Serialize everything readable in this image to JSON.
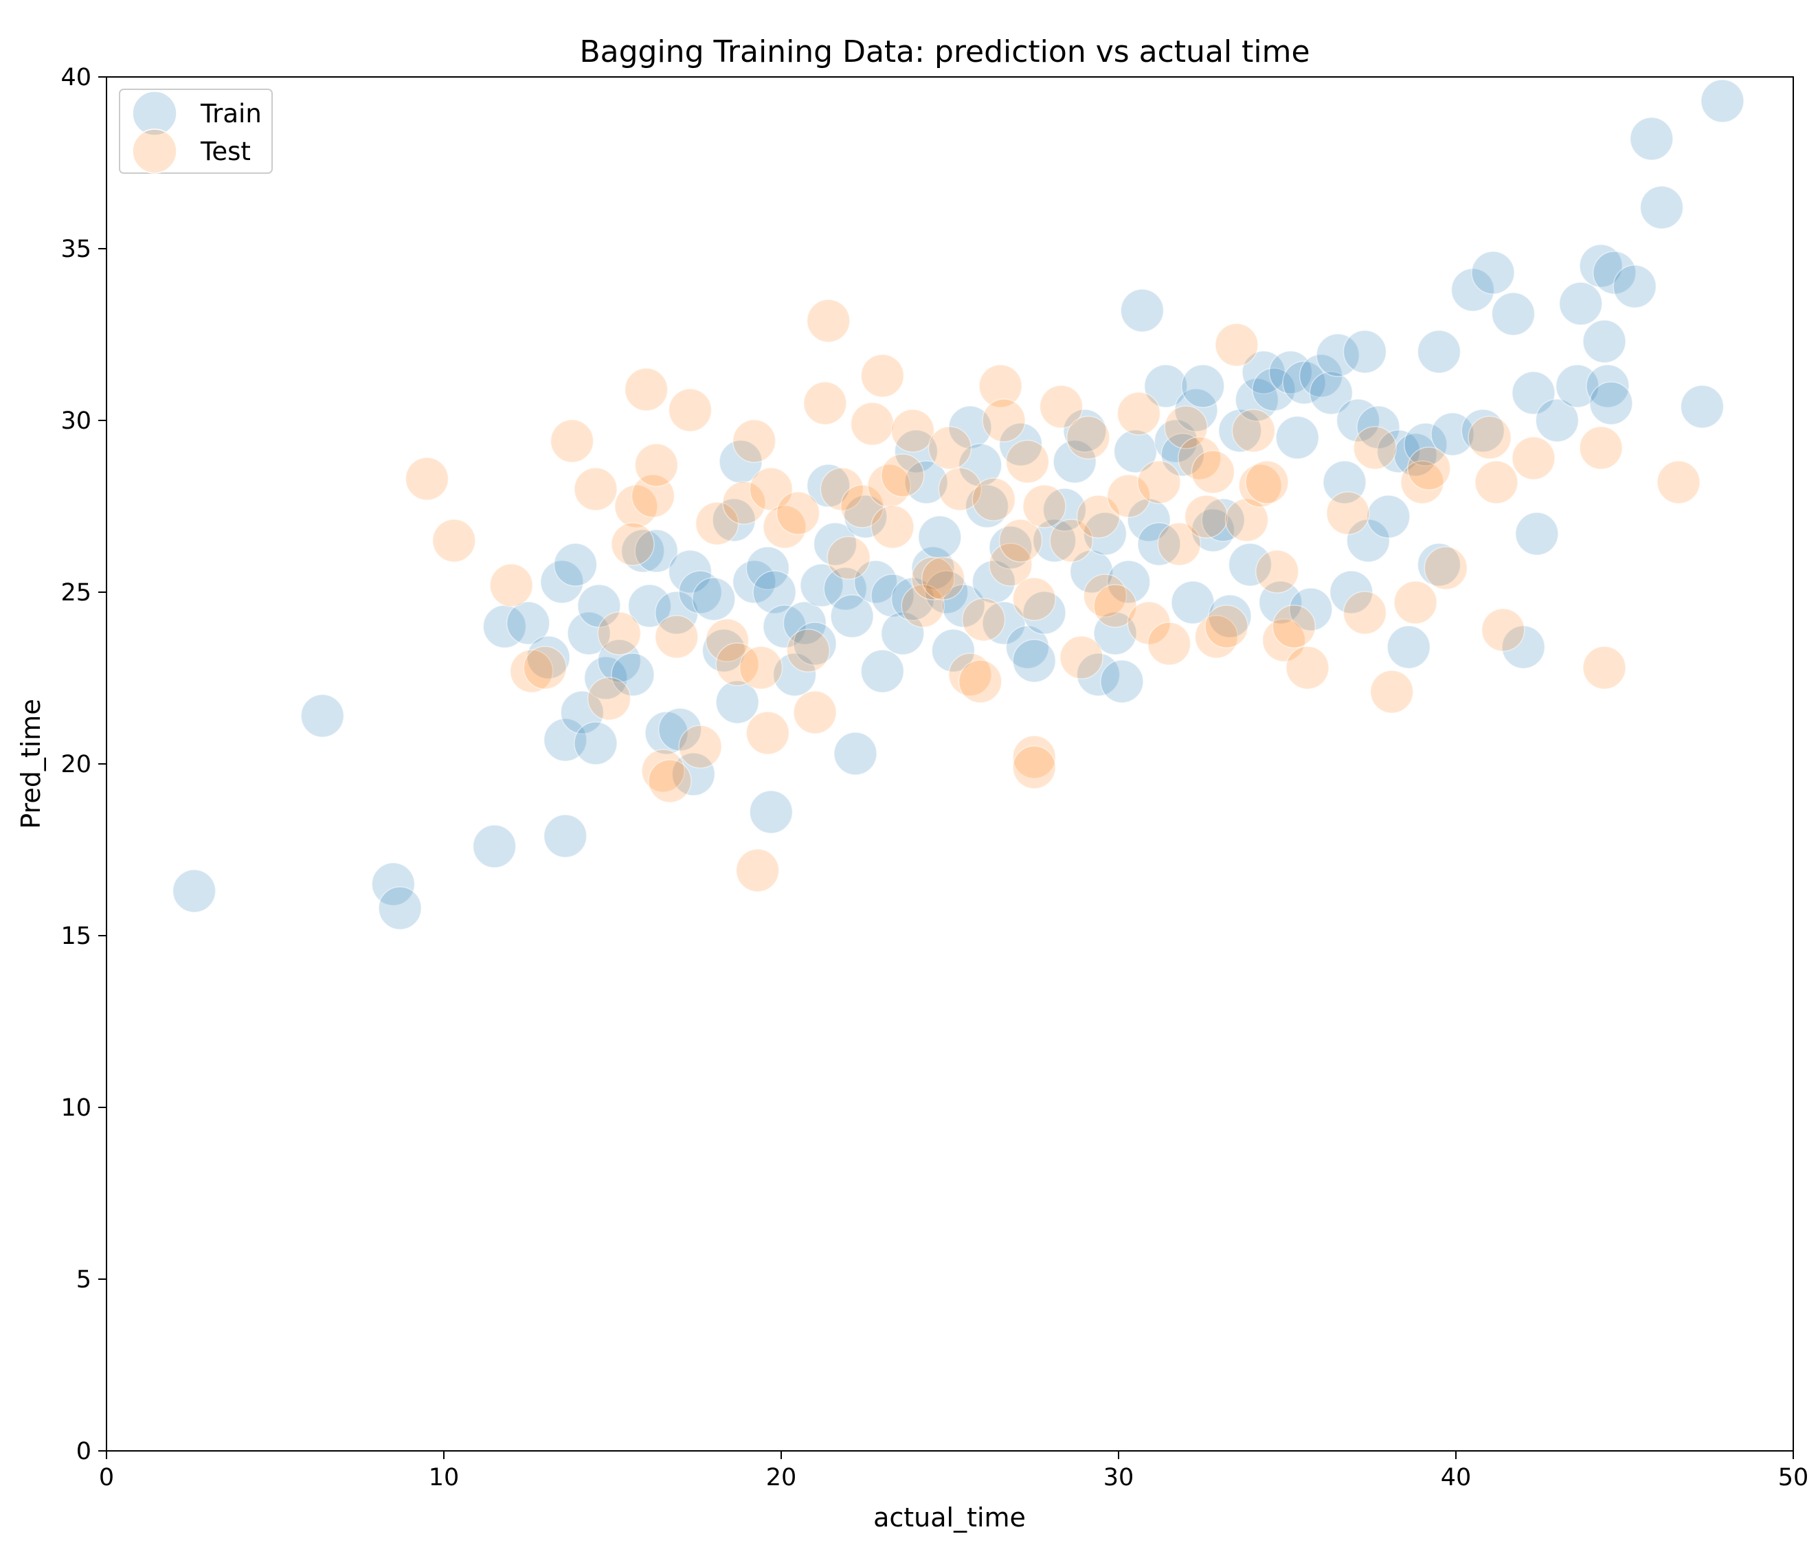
{
  "chart_data": {
    "type": "scatter",
    "title": "Bagging Training Data: prediction vs actual time",
    "xlabel": "actual_time",
    "ylabel": "Pred_time",
    "xlim": [
      0,
      50
    ],
    "ylim": [
      0,
      40
    ],
    "x_ticks": [
      0,
      10,
      20,
      30,
      40,
      50
    ],
    "y_ticks": [
      0,
      5,
      10,
      15,
      20,
      25,
      30,
      35,
      40
    ],
    "grid": false,
    "legend_position": "upper-left",
    "series": [
      {
        "name": "Train",
        "color": "#1f77b4",
        "alpha": 0.2,
        "points": [
          [
            2.6,
            16.3
          ],
          [
            6.4,
            21.4
          ],
          [
            8.5,
            16.5
          ],
          [
            8.7,
            15.8
          ],
          [
            11.5,
            17.6
          ],
          [
            13.6,
            17.9
          ],
          [
            11.8,
            24.0
          ],
          [
            12.5,
            24.1
          ],
          [
            13.5,
            25.3
          ],
          [
            13.9,
            25.8
          ],
          [
            13.1,
            23.1
          ],
          [
            13.6,
            20.7
          ],
          [
            14.1,
            21.5
          ],
          [
            14.5,
            20.6
          ],
          [
            14.3,
            23.8
          ],
          [
            14.6,
            24.6
          ],
          [
            14.8,
            22.5
          ],
          [
            15.2,
            23.0
          ],
          [
            15.6,
            22.6
          ],
          [
            15.9,
            26.2
          ],
          [
            16.3,
            26.2
          ],
          [
            16.1,
            24.6
          ],
          [
            16.6,
            20.9
          ],
          [
            17.0,
            21.0
          ],
          [
            17.4,
            19.7
          ],
          [
            16.9,
            24.4
          ],
          [
            17.3,
            25.6
          ],
          [
            17.6,
            25.0
          ],
          [
            18.0,
            24.8
          ],
          [
            18.3,
            23.3
          ],
          [
            18.7,
            21.8
          ],
          [
            18.6,
            27.1
          ],
          [
            18.8,
            28.8
          ],
          [
            19.2,
            25.3
          ],
          [
            19.6,
            25.7
          ],
          [
            19.8,
            25.0
          ],
          [
            20.1,
            24.0
          ],
          [
            19.7,
            18.6
          ],
          [
            20.4,
            22.6
          ],
          [
            20.7,
            24.1
          ],
          [
            21.0,
            23.5
          ],
          [
            21.2,
            25.2
          ],
          [
            21.4,
            28.1
          ],
          [
            21.6,
            26.4
          ],
          [
            21.9,
            25.1
          ],
          [
            22.1,
            24.3
          ],
          [
            22.2,
            20.3
          ],
          [
            22.5,
            27.2
          ],
          [
            22.8,
            25.3
          ],
          [
            23.0,
            22.7
          ],
          [
            23.3,
            24.9
          ],
          [
            23.6,
            23.8
          ],
          [
            23.9,
            24.8
          ],
          [
            24.0,
            29.1
          ],
          [
            24.3,
            28.2
          ],
          [
            24.5,
            25.7
          ],
          [
            24.7,
            26.6
          ],
          [
            24.9,
            25.0
          ],
          [
            25.1,
            23.3
          ],
          [
            25.4,
            24.6
          ],
          [
            25.6,
            29.8
          ],
          [
            25.9,
            28.7
          ],
          [
            26.1,
            27.5
          ],
          [
            26.3,
            25.3
          ],
          [
            26.6,
            24.1
          ],
          [
            26.8,
            26.3
          ],
          [
            27.1,
            29.3
          ],
          [
            27.3,
            23.4
          ],
          [
            27.5,
            23.0
          ],
          [
            27.8,
            24.4
          ],
          [
            28.1,
            26.5
          ],
          [
            28.4,
            27.4
          ],
          [
            28.7,
            28.8
          ],
          [
            29.0,
            29.7
          ],
          [
            29.2,
            25.6
          ],
          [
            29.4,
            22.6
          ],
          [
            29.6,
            26.7
          ],
          [
            29.9,
            23.8
          ],
          [
            30.1,
            22.4
          ],
          [
            30.3,
            25.3
          ],
          [
            30.5,
            29.1
          ],
          [
            30.7,
            33.2
          ],
          [
            30.9,
            27.1
          ],
          [
            31.2,
            26.4
          ],
          [
            31.4,
            31.0
          ],
          [
            31.7,
            29.4
          ],
          [
            31.9,
            29.0
          ],
          [
            32.2,
            24.7
          ],
          [
            32.3,
            30.3
          ],
          [
            32.5,
            31.0
          ],
          [
            32.8,
            26.8
          ],
          [
            33.1,
            27.1
          ],
          [
            33.3,
            24.3
          ],
          [
            33.6,
            29.7
          ],
          [
            33.9,
            25.8
          ],
          [
            34.1,
            30.6
          ],
          [
            34.3,
            31.4
          ],
          [
            34.6,
            30.9
          ],
          [
            34.8,
            24.7
          ],
          [
            35.1,
            31.4
          ],
          [
            35.3,
            29.5
          ],
          [
            35.5,
            31.1
          ],
          [
            35.7,
            24.5
          ],
          [
            36.0,
            31.3
          ],
          [
            36.3,
            30.8
          ],
          [
            36.5,
            31.9
          ],
          [
            36.7,
            28.2
          ],
          [
            36.9,
            25.0
          ],
          [
            37.1,
            30.0
          ],
          [
            37.3,
            32.0
          ],
          [
            37.4,
            26.5
          ],
          [
            37.7,
            29.8
          ],
          [
            38.0,
            27.2
          ],
          [
            38.3,
            29.1
          ],
          [
            38.6,
            23.4
          ],
          [
            38.8,
            29.0
          ],
          [
            39.1,
            29.3
          ],
          [
            39.5,
            32.0
          ],
          [
            39.5,
            25.8
          ],
          [
            39.9,
            29.6
          ],
          [
            40.5,
            33.8
          ],
          [
            40.8,
            29.7
          ],
          [
            41.1,
            34.3
          ],
          [
            41.7,
            33.1
          ],
          [
            42.0,
            23.4
          ],
          [
            42.3,
            30.8
          ],
          [
            42.4,
            26.7
          ],
          [
            43.0,
            30.0
          ],
          [
            43.6,
            31.0
          ],
          [
            43.7,
            33.4
          ],
          [
            44.3,
            34.5
          ],
          [
            44.4,
            32.3
          ],
          [
            44.5,
            31.0
          ],
          [
            44.6,
            30.5
          ],
          [
            44.7,
            34.3
          ],
          [
            45.3,
            33.9
          ],
          [
            45.8,
            38.2
          ],
          [
            46.1,
            36.2
          ],
          [
            47.3,
            30.4
          ],
          [
            47.9,
            39.3
          ]
        ]
      },
      {
        "name": "Test",
        "color": "#ff7f0e",
        "alpha": 0.2,
        "points": [
          [
            9.5,
            28.3
          ],
          [
            10.3,
            26.5
          ],
          [
            12.0,
            25.2
          ],
          [
            12.6,
            22.7
          ],
          [
            13.0,
            22.8
          ],
          [
            13.8,
            29.4
          ],
          [
            14.5,
            28.0
          ],
          [
            14.9,
            21.9
          ],
          [
            15.2,
            23.8
          ],
          [
            15.7,
            27.5
          ],
          [
            15.6,
            26.4
          ],
          [
            16.0,
            30.9
          ],
          [
            16.2,
            27.8
          ],
          [
            16.3,
            28.7
          ],
          [
            16.5,
            19.8
          ],
          [
            16.7,
            19.5
          ],
          [
            16.9,
            23.7
          ],
          [
            17.3,
            30.3
          ],
          [
            17.6,
            20.5
          ],
          [
            18.1,
            27.0
          ],
          [
            18.4,
            23.6
          ],
          [
            18.7,
            22.9
          ],
          [
            18.9,
            27.6
          ],
          [
            19.2,
            29.4
          ],
          [
            19.4,
            22.8
          ],
          [
            19.6,
            20.9
          ],
          [
            19.7,
            28.0
          ],
          [
            19.3,
            16.9
          ],
          [
            20.1,
            26.9
          ],
          [
            20.5,
            27.3
          ],
          [
            20.8,
            23.3
          ],
          [
            21.0,
            21.5
          ],
          [
            21.4,
            32.9
          ],
          [
            21.3,
            30.5
          ],
          [
            21.8,
            28.0
          ],
          [
            22.0,
            26.0
          ],
          [
            22.4,
            27.5
          ],
          [
            22.7,
            29.9
          ],
          [
            23.0,
            31.3
          ],
          [
            23.2,
            28.1
          ],
          [
            23.3,
            26.9
          ],
          [
            23.6,
            28.4
          ],
          [
            23.9,
            29.7
          ],
          [
            24.2,
            24.6
          ],
          [
            24.5,
            25.4
          ],
          [
            24.8,
            25.4
          ],
          [
            25.0,
            29.2
          ],
          [
            25.3,
            28.0
          ],
          [
            25.6,
            22.6
          ],
          [
            25.9,
            22.4
          ],
          [
            26.0,
            24.2
          ],
          [
            26.3,
            27.7
          ],
          [
            26.5,
            31.0
          ],
          [
            26.6,
            30.0
          ],
          [
            26.8,
            25.8
          ],
          [
            27.1,
            26.5
          ],
          [
            27.3,
            28.8
          ],
          [
            27.5,
            24.8
          ],
          [
            27.5,
            20.2
          ],
          [
            27.5,
            19.9
          ],
          [
            27.8,
            27.5
          ],
          [
            28.3,
            30.4
          ],
          [
            28.6,
            26.5
          ],
          [
            28.9,
            23.1
          ],
          [
            29.1,
            29.5
          ],
          [
            29.4,
            27.2
          ],
          [
            29.6,
            24.9
          ],
          [
            29.9,
            24.6
          ],
          [
            30.3,
            27.8
          ],
          [
            30.6,
            30.2
          ],
          [
            30.9,
            24.1
          ],
          [
            31.2,
            28.2
          ],
          [
            31.5,
            23.5
          ],
          [
            31.8,
            26.4
          ],
          [
            32.0,
            29.8
          ],
          [
            32.4,
            28.9
          ],
          [
            32.6,
            27.2
          ],
          [
            32.8,
            28.5
          ],
          [
            32.9,
            23.7
          ],
          [
            33.2,
            24.0
          ],
          [
            33.5,
            32.2
          ],
          [
            33.8,
            27.1
          ],
          [
            34.0,
            29.7
          ],
          [
            34.2,
            28.1
          ],
          [
            34.4,
            28.2
          ],
          [
            34.7,
            25.6
          ],
          [
            34.9,
            23.6
          ],
          [
            35.2,
            24.0
          ],
          [
            35.6,
            22.8
          ],
          [
            36.8,
            27.3
          ],
          [
            37.3,
            24.4
          ],
          [
            37.6,
            29.2
          ],
          [
            38.1,
            22.1
          ],
          [
            38.8,
            24.7
          ],
          [
            39.0,
            28.2
          ],
          [
            39.2,
            28.6
          ],
          [
            39.7,
            25.7
          ],
          [
            41.0,
            29.5
          ],
          [
            41.2,
            28.2
          ],
          [
            41.4,
            23.9
          ],
          [
            42.3,
            28.9
          ],
          [
            44.3,
            29.2
          ],
          [
            44.4,
            22.8
          ],
          [
            46.6,
            28.2
          ]
        ]
      }
    ]
  }
}
